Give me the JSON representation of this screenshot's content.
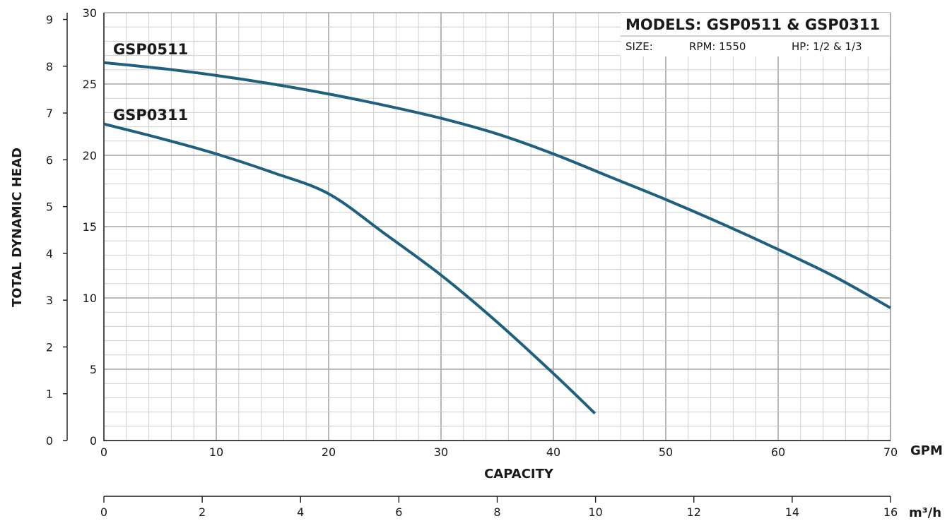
{
  "chart_data": {
    "type": "line",
    "title": "MODELS: GSP0511 & GSP0311",
    "info": {
      "size": "SIZE:",
      "rpm": "RPM: 1550",
      "hp": "HP: 1/2 & 1/3"
    },
    "xlabel": "CAPACITY",
    "ylabel": "TOTAL DYNAMIC HEAD",
    "x_unit_primary": "GPM",
    "x_unit_secondary": "m³/h",
    "xlim": [
      0,
      70
    ],
    "ylim": [
      0,
      30
    ],
    "x_ticks": [
      0,
      10,
      20,
      30,
      40,
      50,
      60,
      70
    ],
    "y_ticks": [
      0,
      5,
      10,
      15,
      20,
      25,
      30
    ],
    "x_secondary_ticks": [
      0,
      2,
      4,
      6,
      8,
      10,
      12,
      14,
      16
    ],
    "x_secondary_lim": [
      0,
      16
    ],
    "y_secondary_ticks": [
      0,
      1,
      2,
      3,
      4,
      5,
      6,
      7,
      8,
      9
    ],
    "y_secondary_lim": [
      0,
      9.144
    ],
    "grid": true,
    "series": [
      {
        "name": "GSP0511",
        "color": "#1f5f7f",
        "x": [
          0,
          5,
          10,
          15,
          20,
          25,
          30,
          35,
          40,
          45,
          50,
          55,
          60,
          65,
          70
        ],
        "y": [
          26.5,
          26.1,
          25.6,
          25.0,
          24.3,
          23.5,
          22.6,
          21.5,
          20.1,
          18.5,
          16.9,
          15.2,
          13.4,
          11.5,
          9.3
        ]
      },
      {
        "name": "GSP0311",
        "color": "#1f5f7f",
        "x": [
          0,
          5,
          10,
          15,
          20,
          25,
          30,
          35,
          40,
          43.7
        ],
        "y": [
          22.2,
          21.2,
          20.1,
          18.8,
          17.3,
          14.5,
          11.6,
          8.3,
          4.7,
          1.9
        ]
      }
    ]
  }
}
